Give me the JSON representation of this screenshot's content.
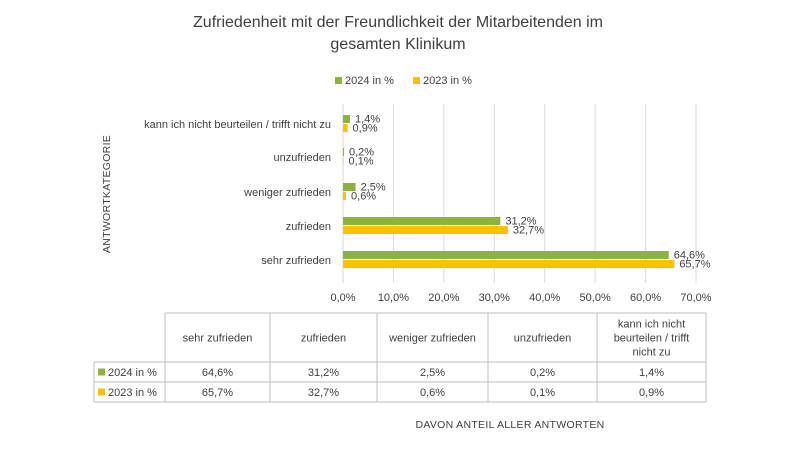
{
  "chart_data": {
    "type": "bar",
    "orientation": "horizontal",
    "title": "Zufriedenheit mit der Freundlichkeit der Mitarbeitenden im gesamten Klinikum",
    "title_lines": [
      "Zufriedenheit mit der Freundlichkeit der Mitarbeitenden im",
      "gesamten Klinikum"
    ],
    "categories": [
      "sehr zufrieden",
      "zufrieden",
      "weniger zufrieden",
      "unzufrieden",
      "kann ich nicht beurteilen / trifft nicht zu"
    ],
    "series": [
      {
        "name": "2024 in %",
        "color": "#8DB33E",
        "values": [
          64.6,
          31.2,
          2.5,
          0.2,
          1.4
        ],
        "labels": [
          "64,6%",
          "31,2%",
          "2,5%",
          "0,2%",
          "1,4%"
        ]
      },
      {
        "name": "2023 in %",
        "color": "#FFC000",
        "values": [
          65.7,
          32.7,
          0.6,
          0.1,
          0.9
        ],
        "labels": [
          "65,7%",
          "32,7%",
          "0,6%",
          "0,1%",
          "0,9%"
        ]
      }
    ],
    "xlim": [
      0,
      70
    ],
    "xticks": [
      "0,0%",
      "10,0%",
      "20,0%",
      "30,0%",
      "40,0%",
      "50,0%",
      "60,0%",
      "70,0%"
    ],
    "ylabel": "ANTWORTKATEGORIE",
    "xlabel": "DAVON ANTEIL ALLER ANTWORTEN",
    "legend_position": "top",
    "grid": true,
    "data_table": {
      "headers": [
        "sehr zufrieden",
        "zufrieden",
        "weniger zufrieden",
        "unzufrieden",
        "kann ich nicht beurteilen / trifft nicht zu"
      ],
      "header_lines": [
        [
          "sehr zufrieden"
        ],
        [
          "zufrieden"
        ],
        [
          "weniger zufrieden"
        ],
        [
          "unzufrieden"
        ],
        [
          "kann ich nicht",
          "beurteilen / trifft",
          "nicht zu"
        ]
      ],
      "rows": [
        {
          "name": "2024 in %",
          "values": [
            "64,6%",
            "31,2%",
            "2,5%",
            "0,2%",
            "1,4%"
          ]
        },
        {
          "name": "2023 in %",
          "values": [
            "65,7%",
            "32,7%",
            "0,6%",
            "0,1%",
            "0,9%"
          ]
        }
      ]
    }
  }
}
